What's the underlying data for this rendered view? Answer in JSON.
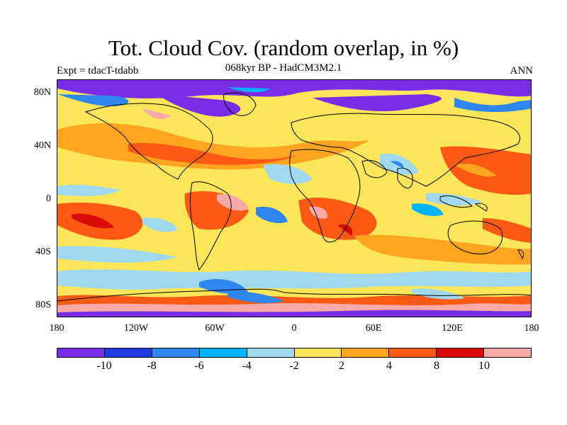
{
  "title": "Tot. Cloud Cov. (random overlap, in %)",
  "subtitle": "068kyr BP - HadCM3M2.1",
  "experiment": "Expt = tdacT-tdabb",
  "season": "ANN",
  "lat_ticks": [
    "80N",
    "40N",
    "0",
    "40S",
    "80S"
  ],
  "lon_ticks": [
    "180",
    "120W",
    "60W",
    "0",
    "60E",
    "120E",
    "180"
  ],
  "colorbar": {
    "colors": [
      "#7a2de6",
      "#1f3ce0",
      "#2e86ef",
      "#00b3ff",
      "#a0d8f0",
      "#fde65a",
      "#ffa51f",
      "#ff5a14",
      "#d80a0a",
      "#f7aaa8"
    ],
    "labels": [
      "-10",
      "-8",
      "-6",
      "-4",
      "-2",
      "2",
      "4",
      "8",
      "10"
    ]
  }
}
